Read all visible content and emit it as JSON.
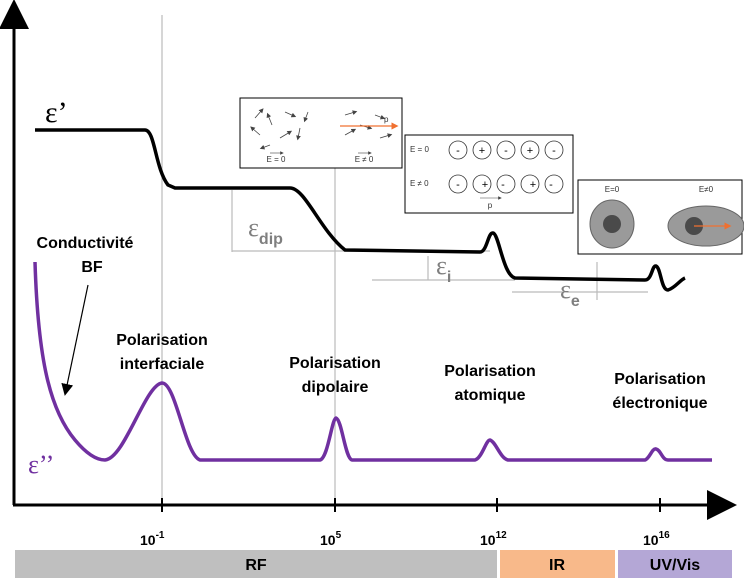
{
  "curves": {
    "real_label": "ε’",
    "imag_label": "ε’’"
  },
  "steps": [
    {
      "symbol": "ε",
      "subscript": "dip"
    },
    {
      "symbol": "ε",
      "subscript": "i"
    },
    {
      "symbol": "ε",
      "subscript": "e"
    }
  ],
  "annotations": {
    "conductivity": [
      "Conductivité",
      "BF"
    ]
  },
  "peaks": [
    [
      "Polarisation",
      "interfaciale"
    ],
    [
      "Polarisation",
      "dipolaire"
    ],
    [
      "Polarisation",
      "atomique"
    ],
    [
      "Polarisation",
      "électronique"
    ]
  ],
  "x_ticks": [
    {
      "base": "10",
      "exponent": "-1"
    },
    {
      "base": "10",
      "exponent": "5"
    },
    {
      "base": "10",
      "exponent": "12"
    },
    {
      "base": "10",
      "exponent": "16"
    }
  ],
  "bands": [
    "RF",
    "IR",
    "UV/Vis"
  ],
  "insets": {
    "dipolar": {
      "left": "E = 0",
      "right": "E ≠ 0",
      "moment": "p"
    },
    "atomic": {
      "row_labels": [
        "E = 0",
        "E ≠ 0"
      ],
      "rows": [
        [
          "-",
          "+",
          "-",
          "+",
          "-"
        ],
        [
          "-",
          "+",
          "-",
          "+",
          "-"
        ]
      ],
      "moment": "p"
    },
    "electronic": {
      "left": "E=0",
      "right": "E≠0"
    }
  }
}
